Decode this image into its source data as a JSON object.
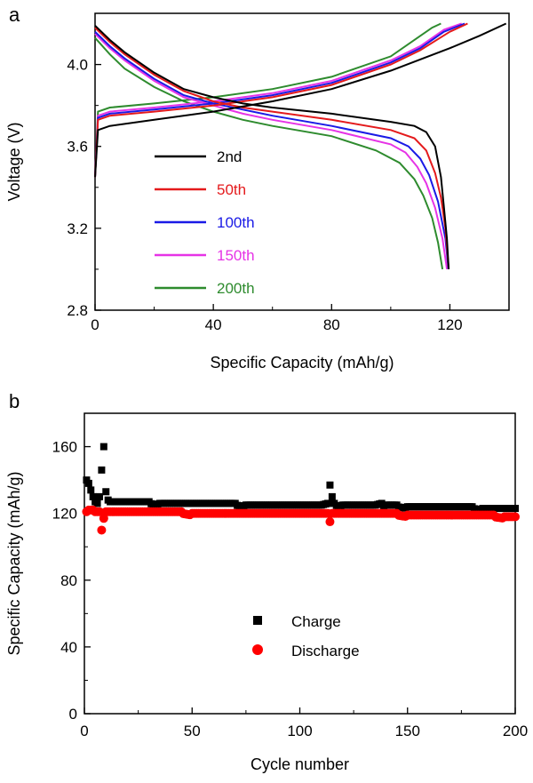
{
  "chart_data": [
    {
      "panel": "a",
      "type": "line",
      "title": "",
      "xlabel": "Specific Capacity (mAh/g)",
      "ylabel": "Voltage (V)",
      "xlim": [
        0,
        140
      ],
      "ylim": [
        2.8,
        4.25
      ],
      "xticks": [
        "0",
        "40",
        "80",
        "120"
      ],
      "yticks": [
        "2.8",
        "3.2",
        "3.6",
        "4.0"
      ],
      "grid": false,
      "legend_position": "lower-left",
      "series": [
        {
          "name": "2nd",
          "color": "#000000",
          "charge": [
            [
              0,
              3.45
            ],
            [
              1,
              3.68
            ],
            [
              5,
              3.7
            ],
            [
              20,
              3.73
            ],
            [
              40,
              3.77
            ],
            [
              60,
              3.82
            ],
            [
              80,
              3.88
            ],
            [
              100,
              3.97
            ],
            [
              120,
              4.08
            ],
            [
              130,
              4.14
            ],
            [
              139,
              4.2
            ]
          ],
          "discharge": [
            [
              0,
              4.19
            ],
            [
              5,
              4.12
            ],
            [
              10,
              4.06
            ],
            [
              20,
              3.96
            ],
            [
              30,
              3.88
            ],
            [
              40,
              3.84
            ],
            [
              50,
              3.81
            ],
            [
              60,
              3.79
            ],
            [
              80,
              3.76
            ],
            [
              100,
              3.72
            ],
            [
              108,
              3.7
            ],
            [
              112,
              3.67
            ],
            [
              115,
              3.6
            ],
            [
              117,
              3.45
            ],
            [
              118,
              3.3
            ],
            [
              119,
              3.15
            ],
            [
              119.6,
              3.0
            ]
          ]
        },
        {
          "name": "50th",
          "color": "#e41a1c",
          "charge": [
            [
              0,
              3.45
            ],
            [
              1,
              3.73
            ],
            [
              5,
              3.75
            ],
            [
              20,
              3.77
            ],
            [
              40,
              3.8
            ],
            [
              60,
              3.84
            ],
            [
              80,
              3.9
            ],
            [
              100,
              4.0
            ],
            [
              110,
              4.07
            ],
            [
              120,
              4.16
            ],
            [
              126,
              4.2
            ]
          ],
          "discharge": [
            [
              0,
              4.18
            ],
            [
              5,
              4.11
            ],
            [
              10,
              4.05
            ],
            [
              20,
              3.95
            ],
            [
              30,
              3.87
            ],
            [
              40,
              3.82
            ],
            [
              50,
              3.79
            ],
            [
              60,
              3.77
            ],
            [
              80,
              3.73
            ],
            [
              100,
              3.68
            ],
            [
              108,
              3.64
            ],
            [
              112,
              3.58
            ],
            [
              115,
              3.47
            ],
            [
              117,
              3.35
            ],
            [
              118.5,
              3.2
            ],
            [
              119.6,
              3.0
            ]
          ]
        },
        {
          "name": "100th",
          "color": "#1a1ae6",
          "charge": [
            [
              0,
              3.45
            ],
            [
              1,
              3.74
            ],
            [
              5,
              3.76
            ],
            [
              20,
              3.78
            ],
            [
              40,
              3.81
            ],
            [
              60,
              3.85
            ],
            [
              80,
              3.91
            ],
            [
              100,
              4.01
            ],
            [
              110,
              4.08
            ],
            [
              118,
              4.16
            ],
            [
              125,
              4.2
            ]
          ],
          "discharge": [
            [
              0,
              4.16
            ],
            [
              5,
              4.09
            ],
            [
              10,
              4.03
            ],
            [
              20,
              3.93
            ],
            [
              30,
              3.85
            ],
            [
              40,
              3.81
            ],
            [
              50,
              3.78
            ],
            [
              60,
              3.75
            ],
            [
              80,
              3.7
            ],
            [
              100,
              3.64
            ],
            [
              106,
              3.6
            ],
            [
              110,
              3.54
            ],
            [
              113,
              3.46
            ],
            [
              116,
              3.33
            ],
            [
              118.5,
              3.15
            ],
            [
              119.5,
              3.0
            ]
          ]
        },
        {
          "name": "150th",
          "color": "#e633e6",
          "charge": [
            [
              0,
              3.45
            ],
            [
              1,
              3.75
            ],
            [
              5,
              3.77
            ],
            [
              20,
              3.79
            ],
            [
              40,
              3.82
            ],
            [
              60,
              3.86
            ],
            [
              80,
              3.92
            ],
            [
              100,
              4.02
            ],
            [
              110,
              4.09
            ],
            [
              118,
              4.17
            ],
            [
              124,
              4.2
            ]
          ],
          "discharge": [
            [
              0,
              4.15
            ],
            [
              5,
              4.08
            ],
            [
              10,
              4.02
            ],
            [
              20,
              3.92
            ],
            [
              30,
              3.84
            ],
            [
              40,
              3.8
            ],
            [
              50,
              3.76
            ],
            [
              60,
              3.73
            ],
            [
              80,
              3.68
            ],
            [
              100,
              3.61
            ],
            [
              105,
              3.57
            ],
            [
              109,
              3.5
            ],
            [
              112,
              3.42
            ],
            [
              115,
              3.3
            ],
            [
              117.5,
              3.15
            ],
            [
              119,
              3.0
            ]
          ]
        },
        {
          "name": "200th",
          "color": "#2e8b2e",
          "charge": [
            [
              0,
              3.45
            ],
            [
              1,
              3.77
            ],
            [
              5,
              3.79
            ],
            [
              20,
              3.81
            ],
            [
              40,
              3.84
            ],
            [
              60,
              3.88
            ],
            [
              80,
              3.94
            ],
            [
              100,
              4.04
            ],
            [
              108,
              4.12
            ],
            [
              114,
              4.18
            ],
            [
              117,
              4.2
            ]
          ],
          "discharge": [
            [
              0,
              4.13
            ],
            [
              5,
              4.05
            ],
            [
              10,
              3.98
            ],
            [
              20,
              3.89
            ],
            [
              30,
              3.82
            ],
            [
              40,
              3.77
            ],
            [
              50,
              3.73
            ],
            [
              60,
              3.7
            ],
            [
              80,
              3.65
            ],
            [
              95,
              3.58
            ],
            [
              103,
              3.52
            ],
            [
              108,
              3.44
            ],
            [
              111,
              3.36
            ],
            [
              114,
              3.25
            ],
            [
              116,
              3.13
            ],
            [
              117.5,
              3.0
            ]
          ]
        }
      ],
      "legend": [
        {
          "label": "2nd",
          "color": "#000000"
        },
        {
          "label": "50th",
          "color": "#e41a1c"
        },
        {
          "label": "100th",
          "color": "#1a1ae6"
        },
        {
          "label": "150th",
          "color": "#e633e6"
        },
        {
          "label": "200th",
          "color": "#2e8b2e"
        }
      ]
    },
    {
      "panel": "b",
      "type": "scatter",
      "title": "",
      "xlabel": "Cycle number",
      "ylabel": "Specific Capacity (mAh/g)",
      "xlim": [
        0,
        200
      ],
      "ylim": [
        0,
        180
      ],
      "xticks": [
        "0",
        "50",
        "100",
        "150",
        "200"
      ],
      "yticks": [
        "0",
        "40",
        "80",
        "120",
        "160"
      ],
      "grid": false,
      "legend_position": "center-right",
      "series": [
        {
          "name": "Charge",
          "color": "#000000",
          "marker": "square",
          "x": [
            1,
            2,
            3,
            4,
            5,
            6,
            7,
            8,
            9,
            10,
            11,
            12,
            15,
            20,
            25,
            30,
            35,
            40,
            45,
            50,
            55,
            60,
            65,
            70,
            75,
            80,
            85,
            90,
            95,
            100,
            105,
            110,
            113,
            114,
            115,
            116,
            120,
            125,
            130,
            135,
            138,
            140,
            145,
            150,
            155,
            160,
            165,
            170,
            175,
            180,
            185,
            190,
            195,
            200
          ],
          "y": [
            140,
            138,
            134,
            130,
            127,
            126,
            130,
            146,
            160,
            133,
            128,
            127,
            127,
            127,
            127,
            127,
            126,
            126,
            126,
            126,
            126,
            126,
            126,
            126,
            125,
            125,
            125,
            125,
            125,
            125,
            125,
            125,
            126,
            137,
            130,
            126,
            125,
            125,
            125,
            125,
            126,
            125,
            125,
            124,
            124,
            124,
            124,
            124,
            124,
            124,
            123,
            123,
            123,
            123
          ]
        },
        {
          "name": "Discharge",
          "color": "#ff0000",
          "marker": "circle",
          "x": [
            1,
            2,
            3,
            4,
            5,
            6,
            7,
            8,
            9,
            10,
            11,
            12,
            15,
            20,
            25,
            30,
            35,
            40,
            45,
            50,
            55,
            60,
            65,
            70,
            75,
            80,
            85,
            90,
            95,
            100,
            105,
            110,
            113,
            114,
            115,
            116,
            120,
            125,
            130,
            135,
            140,
            145,
            150,
            155,
            160,
            165,
            170,
            175,
            180,
            185,
            190,
            195,
            200
          ],
          "y": [
            121,
            122,
            122,
            122,
            121,
            121,
            121,
            110,
            117,
            121,
            121,
            121,
            121,
            121,
            121,
            121,
            121,
            121,
            121,
            120,
            120,
            120,
            120,
            120,
            120,
            120,
            120,
            120,
            120,
            120,
            120,
            120,
            120,
            115,
            120,
            120,
            120,
            120,
            120,
            120,
            120,
            120,
            119,
            119,
            119,
            119,
            119,
            119,
            119,
            119,
            119,
            118,
            118
          ]
        }
      ],
      "legend": [
        {
          "label": "Charge",
          "color": "#000000",
          "marker": "square"
        },
        {
          "label": "Discharge",
          "color": "#ff0000",
          "marker": "circle"
        }
      ]
    }
  ]
}
